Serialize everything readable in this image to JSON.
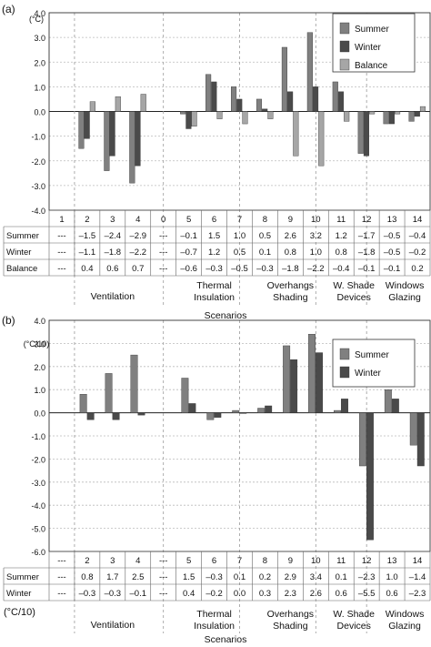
{
  "chart_data": [
    {
      "type": "bar",
      "panel_label": "(a)",
      "unit_label": "(°C)",
      "ylim": [
        -4.0,
        4.0
      ],
      "yticks": [
        "4.0",
        "3.0",
        "2.0",
        "1.0",
        "0.0",
        "-1.0",
        "-2.0",
        "-3.0",
        "-4.0"
      ],
      "grid": "horizontal dashed",
      "legend_position": "top-right",
      "categories": [
        "1",
        "2",
        "3",
        "4",
        "0",
        "5",
        "6",
        "7",
        "8",
        "9",
        "10",
        "11",
        "12",
        "13",
        "14"
      ],
      "series": [
        {
          "name": "Summer",
          "color": "#808080",
          "values": [
            null,
            -1.5,
            -2.4,
            -2.9,
            null,
            -0.1,
            1.5,
            1.0,
            0.5,
            2.6,
            3.2,
            1.2,
            -1.7,
            -0.5,
            -0.4
          ]
        },
        {
          "name": "Winter",
          "color": "#4a4a4a",
          "values": [
            null,
            -1.1,
            -1.8,
            -2.2,
            null,
            -0.7,
            1.2,
            0.5,
            0.1,
            0.8,
            1.0,
            0.8,
            -1.8,
            -0.5,
            -0.2
          ]
        },
        {
          "name": "Balance",
          "color": "#a6a6a6",
          "values": [
            null,
            0.4,
            0.6,
            0.7,
            null,
            -0.6,
            -0.3,
            -0.5,
            -0.3,
            -1.8,
            -2.2,
            -0.4,
            -0.1,
            -0.1,
            0.2
          ]
        }
      ],
      "table": {
        "header": [
          "1",
          "2",
          "3",
          "4",
          "0",
          "5",
          "6",
          "7",
          "8",
          "9",
          "10",
          "11",
          "12",
          "13",
          "14"
        ],
        "rows": [
          {
            "label": "Summer",
            "cells": [
              "---",
              "–1.5",
              "–2.4",
              "–2.9",
              "---",
              "–0.1",
              "1.5",
              "1.0",
              "0.5",
              "2.6",
              "3.2",
              "1.2",
              "–1.7",
              "–0.5",
              "–0.4"
            ]
          },
          {
            "label": "Winter",
            "cells": [
              "---",
              "–1.1",
              "–1.8",
              "–2.2",
              "---",
              "–0.7",
              "1.2",
              "0.5",
              "0.1",
              "0.8",
              "1.0",
              "0.8",
              "–1.8",
              "–0.5",
              "–0.2"
            ]
          },
          {
            "label": "Balance",
            "cells": [
              "---",
              "0.4",
              "0.6",
              "0.7",
              "---",
              "–0.6",
              "–0.3",
              "–0.5",
              "–0.3",
              "–1.8",
              "–2.2",
              "–0.4",
              "–0.1",
              "–0.1",
              "0.2"
            ]
          }
        ]
      },
      "groups": [
        {
          "label": [
            "Ventilation"
          ]
        },
        {
          "label": [
            "Thermal",
            "Insulation"
          ]
        },
        {
          "label": [
            "Overhangs",
            "Shading"
          ]
        },
        {
          "label": [
            "W. Shade",
            "Devices"
          ]
        },
        {
          "label": [
            "Windows",
            "Glazing"
          ]
        }
      ],
      "xlabel": "Scenarios"
    },
    {
      "type": "bar",
      "panel_label": "(b)",
      "unit_label": "(°C/10)",
      "ylim": [
        -6.0,
        4.0
      ],
      "yticks": [
        "4.0",
        "3.0",
        "2.0",
        "1.0",
        "0.0",
        "-1.0",
        "-2.0",
        "-3.0",
        "-4.0",
        "-5.0",
        "-6.0"
      ],
      "grid": "horizontal dashed",
      "legend_position": "top-right",
      "categories": [
        "---",
        "2",
        "3",
        "4",
        "---",
        "5",
        "6",
        "7",
        "8",
        "9",
        "10",
        "11",
        "12",
        "13",
        "14"
      ],
      "series": [
        {
          "name": "Summer",
          "color": "#808080",
          "values": [
            null,
            0.8,
            1.7,
            2.5,
            null,
            1.5,
            -0.3,
            0.1,
            0.2,
            2.9,
            3.4,
            0.1,
            -2.3,
            1.0,
            -1.4
          ]
        },
        {
          "name": "Winter",
          "color": "#4a4a4a",
          "values": [
            null,
            -0.3,
            -0.3,
            -0.1,
            null,
            0.4,
            -0.2,
            0.0,
            0.3,
            2.3,
            2.6,
            0.6,
            -5.5,
            0.6,
            -2.3
          ]
        }
      ],
      "table": {
        "header": [
          "---",
          "2",
          "3",
          "4",
          "---",
          "5",
          "6",
          "7",
          "8",
          "9",
          "10",
          "11",
          "12",
          "13",
          "14"
        ],
        "rows": [
          {
            "label": "Summer",
            "cells": [
              "---",
              "0.8",
              "1.7",
              "2.5",
              "---",
              "1.5",
              "–0.3",
              "0.1",
              "0.2",
              "2.9",
              "3.4",
              "0.1",
              "–2.3",
              "1.0",
              "–1.4"
            ]
          },
          {
            "label": "Winter",
            "cells": [
              "---",
              "–0.3",
              "–0.3",
              "–0.1",
              "---",
              "0.4",
              "–0.2",
              "0.0",
              "0.3",
              "2.3",
              "2.6",
              "0.6",
              "–5.5",
              "0.6",
              "–2.3"
            ]
          }
        ]
      },
      "table_unit_label": "(°C/10)",
      "groups": [
        {
          "label": [
            "Ventilation"
          ]
        },
        {
          "label": [
            "Thermal",
            "Insulation"
          ]
        },
        {
          "label": [
            "Overhangs",
            "Shading"
          ]
        },
        {
          "label": [
            "W. Shade",
            "Devices"
          ]
        },
        {
          "label": [
            "Windows",
            "Glazing"
          ]
        }
      ],
      "xlabel": "Scenarios"
    }
  ]
}
